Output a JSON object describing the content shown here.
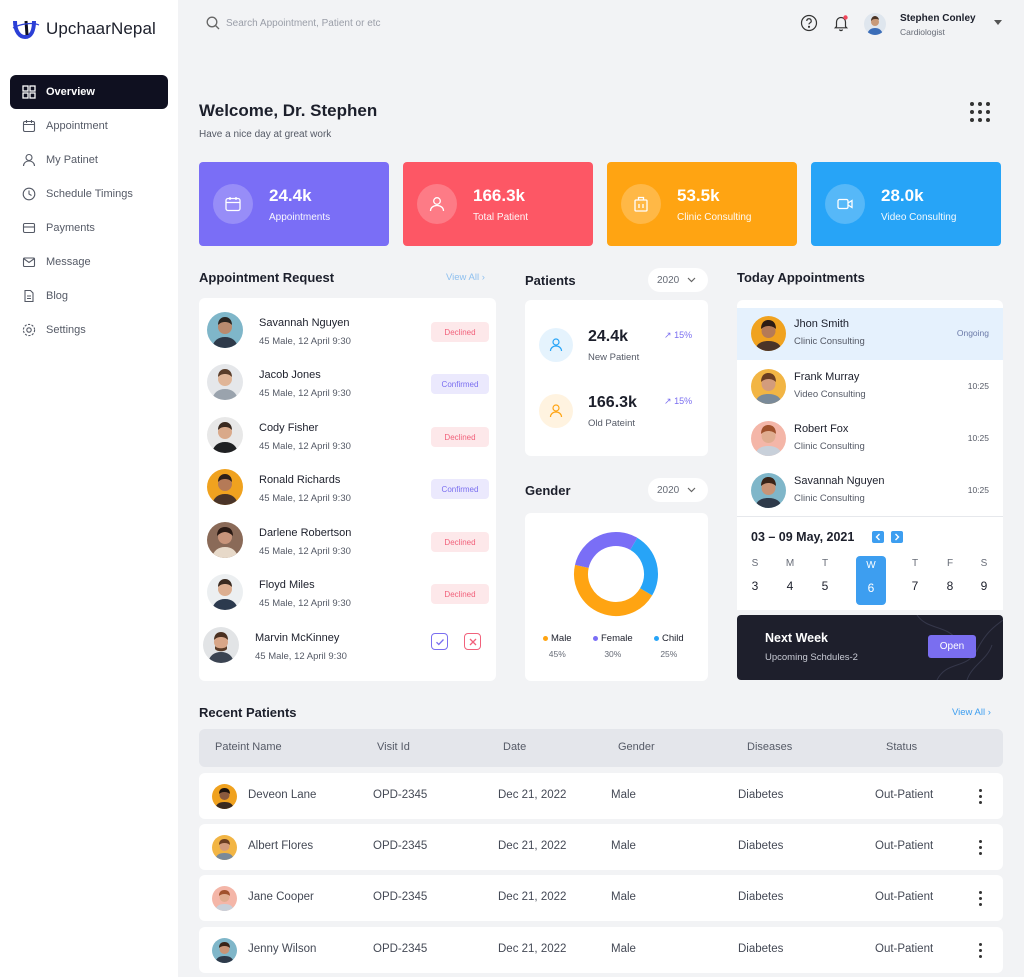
{
  "brand": {
    "name": "UpchaarNepal",
    "logo_text": "U"
  },
  "nav": [
    {
      "label": "Overview",
      "icon": "grid-icon",
      "active": true
    },
    {
      "label": "Appointment",
      "icon": "calendar-icon"
    },
    {
      "label": "My Patinet",
      "icon": "user-icon"
    },
    {
      "label": "Schedule Timings",
      "icon": "clock-icon"
    },
    {
      "label": "Payments",
      "icon": "wallet-icon"
    },
    {
      "label": "Message",
      "icon": "mail-icon"
    },
    {
      "label": "Blog",
      "icon": "document-icon"
    },
    {
      "label": "Settings",
      "icon": "gear-icon"
    }
  ],
  "search": {
    "placeholder": "Search Appointment, Patient or etc"
  },
  "user": {
    "name": "Stephen Conley",
    "role": "Cardiologist"
  },
  "welcome": {
    "title": "Welcome, Dr. Stephen",
    "subtitle": "Have a nice day at great work"
  },
  "stats": [
    {
      "value": "24.4k",
      "label": "Appointments",
      "color": "#7a6ef6",
      "icon": "calendar-icon"
    },
    {
      "value": "166.3k",
      "label": "Total Patient",
      "color": "#fd5765",
      "icon": "user-icon"
    },
    {
      "value": "53.5k",
      "label": "Clinic Consulting",
      "color": "#ffa412",
      "icon": "building-icon"
    },
    {
      "value": "28.0k",
      "label": "Video Consulting",
      "color": "#27a4f7",
      "icon": "video-icon"
    }
  ],
  "appointment_request": {
    "title": "Appointment Request",
    "view_all": "View All",
    "rows": [
      {
        "name": "Savannah Nguyen",
        "sub": "45 Male, 12 April 9:30",
        "status": "Declined"
      },
      {
        "name": "Jacob Jones",
        "sub": "45 Male, 12 April 9:30",
        "status": "Confirmed"
      },
      {
        "name": "Cody Fisher",
        "sub": "45 Male, 12 April 9:30",
        "status": "Declined"
      },
      {
        "name": "Ronald Richards",
        "sub": "45 Male, 12 April 9:30",
        "status": "Confirmed"
      },
      {
        "name": "Darlene Robertson",
        "sub": "45 Male, 12 April 9:30",
        "status": "Declined"
      },
      {
        "name": "Floyd Miles",
        "sub": "45 Male, 12 April 9:30",
        "status": "Declined"
      },
      {
        "name": "Marvin McKinney",
        "sub": "45 Male, 12 April 9:30",
        "status": ""
      }
    ]
  },
  "patients": {
    "title": "Patients",
    "year": "2020",
    "items": [
      {
        "value": "24.4k",
        "label": "New Patient",
        "growth": "15%"
      },
      {
        "value": "166.3k",
        "label": "Old Pateint",
        "growth": "15%"
      }
    ]
  },
  "gender": {
    "title": "Gender",
    "year": "2020",
    "items": [
      {
        "label": "Male",
        "percent": "45%",
        "value": 45,
        "color": "#ffa412"
      },
      {
        "label": "Female",
        "percent": "30%",
        "value": 30,
        "color": "#7a6ef6"
      },
      {
        "label": "Child",
        "percent": "25%",
        "value": 25,
        "color": "#27a4f7"
      }
    ]
  },
  "today": {
    "title": "Today Appointments",
    "rows": [
      {
        "name": "Jhon Smith",
        "sub": "Clinic Consulting",
        "time": "Ongoing"
      },
      {
        "name": "Frank Murray",
        "sub": "Video Consulting",
        "time": "10:25"
      },
      {
        "name": "Robert Fox",
        "sub": "Clinic Consulting",
        "time": "10:25"
      },
      {
        "name": "Savannah Nguyen",
        "sub": "Clinic Consulting",
        "time": "10:25"
      }
    ]
  },
  "calendar": {
    "range": "03 – 09 May, 2021",
    "days": [
      {
        "d": "S",
        "n": "3"
      },
      {
        "d": "M",
        "n": "4"
      },
      {
        "d": "T",
        "n": "5"
      },
      {
        "d": "W",
        "n": "6",
        "selected": true
      },
      {
        "d": "T",
        "n": "7"
      },
      {
        "d": "F",
        "n": "8"
      },
      {
        "d": "S",
        "n": "9"
      }
    ]
  },
  "next_week": {
    "title": "Next Week",
    "subtitle": "Upcoming Schdules-2",
    "button": "Open"
  },
  "recent": {
    "title": "Recent Patients",
    "view_all": "View All",
    "columns": [
      "Pateint Name",
      "Visit Id",
      "Date",
      "Gender",
      "Diseases",
      "Status"
    ],
    "rows": [
      {
        "name": "Deveon Lane",
        "visit": "OPD-2345",
        "date": "Dec 21, 2022",
        "gender": "Male",
        "disease": "Diabetes",
        "status": "Out-Patient"
      },
      {
        "name": "Albert Flores",
        "visit": "OPD-2345",
        "date": "Dec 21, 2022",
        "gender": "Male",
        "disease": "Diabetes",
        "status": "Out-Patient"
      },
      {
        "name": "Jane Cooper",
        "visit": "OPD-2345",
        "date": "Dec 21, 2022",
        "gender": "Male",
        "disease": "Diabetes",
        "status": "Out-Patient"
      },
      {
        "name": "Jenny Wilson",
        "visit": "OPD-2345",
        "date": "Dec 21, 2022",
        "gender": "Male",
        "disease": "Diabetes",
        "status": "Out-Patient"
      }
    ]
  }
}
